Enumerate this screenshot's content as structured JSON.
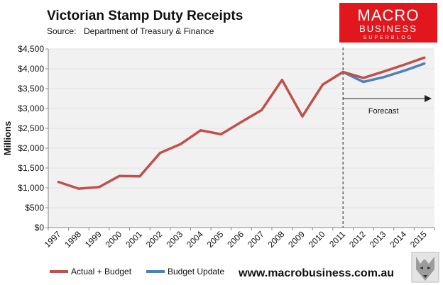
{
  "header": {
    "title": "Victorian Stamp Duty Receipts",
    "source_label": "Source:",
    "source_text": "Department of Treasury & Finance"
  },
  "branding": {
    "logo_line1": "MACRO",
    "logo_line2": "BUSINESS",
    "logo_line3": "SUPERBLOG",
    "website": "www.macrobusiness.com.au",
    "logo_color": "#e2161d"
  },
  "colors": {
    "actual": "#c0504d",
    "update": "#4f81bd",
    "forecast_bg": "#f1f1f1"
  },
  "chart_data": {
    "type": "line",
    "title": "Victorian Stamp Duty Receipts",
    "xlabel": "",
    "ylabel": "Millions",
    "x": [
      "1997",
      "1998",
      "1999",
      "2000",
      "2001",
      "2002",
      "2003",
      "2004",
      "2005",
      "2006",
      "2007",
      "2008",
      "2009",
      "2010",
      "2011",
      "2012",
      "2013",
      "2014",
      "2015"
    ],
    "ylim": [
      0,
      4500
    ],
    "yticks": [
      0,
      500,
      1000,
      1500,
      2000,
      2500,
      3000,
      3500,
      4000,
      4500
    ],
    "ytick_labels": [
      "$0",
      "$500",
      "$1,000",
      "$1,500",
      "$2,000",
      "$2,500",
      "$3,000",
      "$3,500",
      "$4,000",
      "$4,500"
    ],
    "series": [
      {
        "name": "Actual + Budget",
        "values": [
          1150,
          980,
          1020,
          1300,
          1290,
          1880,
          2100,
          2450,
          2350,
          2660,
          2960,
          3720,
          2800,
          3600,
          3920,
          3770,
          3930,
          4100,
          4280
        ]
      },
      {
        "name": "Budget Update",
        "values": [
          null,
          null,
          null,
          null,
          null,
          null,
          null,
          null,
          null,
          null,
          null,
          null,
          null,
          null,
          3920,
          3670,
          3790,
          3950,
          4130
        ]
      }
    ],
    "forecast_start": "2011",
    "annotation": "Forecast",
    "legend_position": "bottom-left"
  }
}
